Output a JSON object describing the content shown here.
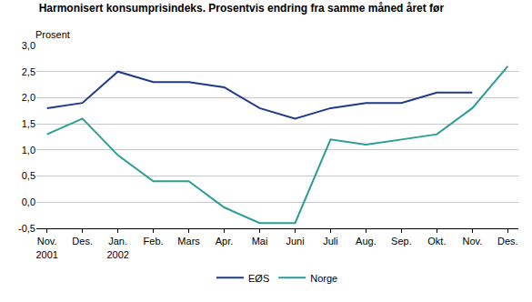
{
  "chart_data": {
    "type": "line",
    "title": "Harmonisert konsumprisindeks. Prosentvis endring fra samme måned året før",
    "ylabel": "Prosent",
    "categories": [
      "Nov.\n2001",
      "Des.",
      "Jan.\n2002",
      "Feb.",
      "Mars",
      "Apr.",
      "Mai",
      "Juni",
      "Juli",
      "Aug.",
      "Sep.",
      "Okt.",
      "Nov.",
      "Des."
    ],
    "series": [
      {
        "name": "EØS",
        "color": "#1f3a8a",
        "values": [
          1.8,
          1.9,
          2.5,
          2.3,
          2.3,
          2.2,
          1.8,
          1.6,
          1.8,
          1.9,
          1.9,
          2.1,
          2.1,
          null
        ]
      },
      {
        "name": "Norge",
        "color": "#2a9d9a",
        "values": [
          1.3,
          1.6,
          0.9,
          0.4,
          0.4,
          -0.1,
          -0.4,
          -0.4,
          1.2,
          1.1,
          1.2,
          1.3,
          1.8,
          2.6
        ]
      }
    ],
    "ylim": [
      -0.5,
      3.0
    ],
    "yticks": [
      {
        "value": -0.5,
        "label": "-0,5"
      },
      {
        "value": 0.0,
        "label": "0,0"
      },
      {
        "value": 0.5,
        "label": "0,5"
      },
      {
        "value": 1.0,
        "label": "1,0"
      },
      {
        "value": 1.5,
        "label": "1,5"
      },
      {
        "value": 2.0,
        "label": "2,0"
      },
      {
        "value": 2.5,
        "label": "2,5"
      },
      {
        "value": 3.0,
        "label": "3,0"
      }
    ],
    "grid": true,
    "legend": "bottom"
  }
}
